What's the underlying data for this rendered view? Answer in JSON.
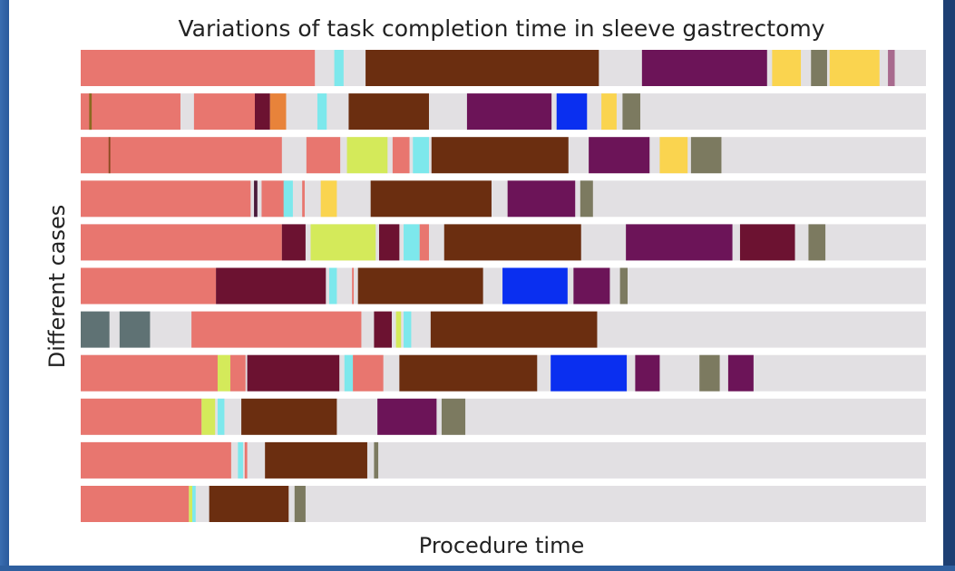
{
  "chart_data": {
    "type": "broken_bar",
    "title": "Variations of task completion time in sleeve gastrectomy",
    "xlabel": "Procedure time",
    "ylabel": "Different cases",
    "xlim": [
      0,
      100
    ],
    "background_color": "#e2e0e3",
    "rows": [
      {
        "segments": [
          {
            "start": 0,
            "duration": 27.7,
            "color": "#e8766f"
          },
          {
            "start": 30.0,
            "duration": 1.1,
            "color": "#7de8ec"
          },
          {
            "start": 33.7,
            "duration": 27.6,
            "color": "#6b2e10"
          },
          {
            "start": 66.4,
            "duration": 14.8,
            "color": "#6c1458"
          },
          {
            "start": 81.8,
            "duration": 3.4,
            "color": "#fad44f"
          },
          {
            "start": 86.4,
            "duration": 1.9,
            "color": "#7c7a60"
          },
          {
            "start": 88.6,
            "duration": 5.9,
            "color": "#fad44f"
          },
          {
            "start": 95.5,
            "duration": 0.8,
            "color": "#a86a8e"
          }
        ]
      },
      {
        "segments": [
          {
            "start": 0,
            "duration": 11.8,
            "color": "#e8766f"
          },
          {
            "start": 1.0,
            "duration": 0.3,
            "color": "#8a6a20"
          },
          {
            "start": 13.4,
            "duration": 7.2,
            "color": "#e8766f"
          },
          {
            "start": 20.6,
            "duration": 1.8,
            "color": "#6c1231"
          },
          {
            "start": 22.4,
            "duration": 1.9,
            "color": "#e8833a"
          },
          {
            "start": 28.0,
            "duration": 1.1,
            "color": "#7de8ec"
          },
          {
            "start": 31.7,
            "duration": 9.5,
            "color": "#6b2e10"
          },
          {
            "start": 45.7,
            "duration": 10.0,
            "color": "#6c1458"
          },
          {
            "start": 56.3,
            "duration": 3.6,
            "color": "#0a2ff0"
          },
          {
            "start": 61.6,
            "duration": 1.8,
            "color": "#fad44f"
          },
          {
            "start": 64.1,
            "duration": 2.1,
            "color": "#7c7a60"
          }
        ]
      },
      {
        "segments": [
          {
            "start": 0,
            "duration": 23.8,
            "color": "#e8766f"
          },
          {
            "start": 3.3,
            "duration": 0.2,
            "color": "#8a4a20"
          },
          {
            "start": 26.7,
            "duration": 4.0,
            "color": "#e8766f"
          },
          {
            "start": 31.5,
            "duration": 4.8,
            "color": "#d4ea5a"
          },
          {
            "start": 36.9,
            "duration": 2.0,
            "color": "#e8766f"
          },
          {
            "start": 39.3,
            "duration": 1.9,
            "color": "#7de8ec"
          },
          {
            "start": 41.5,
            "duration": 16.2,
            "color": "#6b2e10"
          },
          {
            "start": 60.1,
            "duration": 7.2,
            "color": "#6c1458"
          },
          {
            "start": 68.5,
            "duration": 3.3,
            "color": "#fad44f"
          },
          {
            "start": 72.2,
            "duration": 3.6,
            "color": "#7c7a60"
          }
        ]
      },
      {
        "segments": [
          {
            "start": 0,
            "duration": 20.1,
            "color": "#e8766f"
          },
          {
            "start": 20.5,
            "duration": 0.4,
            "color": "#4a1a3a"
          },
          {
            "start": 21.4,
            "duration": 2.7,
            "color": "#e8766f"
          },
          {
            "start": 24.0,
            "duration": 1.1,
            "color": "#7de8ec"
          },
          {
            "start": 26.2,
            "duration": 0.3,
            "color": "#e8766f"
          },
          {
            "start": 28.4,
            "duration": 1.9,
            "color": "#fad44f"
          },
          {
            "start": 34.3,
            "duration": 14.3,
            "color": "#6b2e10"
          },
          {
            "start": 50.5,
            "duration": 8.0,
            "color": "#6c1458"
          },
          {
            "start": 59.1,
            "duration": 1.5,
            "color": "#7c7a60"
          }
        ]
      },
      {
        "segments": [
          {
            "start": 0,
            "duration": 23.8,
            "color": "#e8766f"
          },
          {
            "start": 23.8,
            "duration": 2.8,
            "color": "#6c1231"
          },
          {
            "start": 27.2,
            "duration": 7.7,
            "color": "#d4ea5a"
          },
          {
            "start": 35.3,
            "duration": 2.4,
            "color": "#6c1231"
          },
          {
            "start": 38.2,
            "duration": 1.9,
            "color": "#7de8ec"
          },
          {
            "start": 40.1,
            "duration": 1.1,
            "color": "#e8766f"
          },
          {
            "start": 43.0,
            "duration": 16.2,
            "color": "#6b2e10"
          },
          {
            "start": 64.5,
            "duration": 12.6,
            "color": "#6c1458"
          },
          {
            "start": 78.0,
            "duration": 6.5,
            "color": "#6c1231"
          },
          {
            "start": 86.1,
            "duration": 2.0,
            "color": "#7c7a60"
          }
        ]
      },
      {
        "segments": [
          {
            "start": 0,
            "duration": 16.0,
            "color": "#e8766f"
          },
          {
            "start": 16.0,
            "duration": 13.0,
            "color": "#6c1231"
          },
          {
            "start": 29.4,
            "duration": 0.9,
            "color": "#7de8ec"
          },
          {
            "start": 32.1,
            "duration": 0.2,
            "color": "#e8766f"
          },
          {
            "start": 32.8,
            "duration": 14.8,
            "color": "#6b2e10"
          },
          {
            "start": 49.9,
            "duration": 7.7,
            "color": "#0a2ff0"
          },
          {
            "start": 58.3,
            "duration": 4.3,
            "color": "#6c1458"
          },
          {
            "start": 63.8,
            "duration": 0.9,
            "color": "#7c7a60"
          }
        ]
      },
      {
        "segments": [
          {
            "start": 0,
            "duration": 3.4,
            "color": "#5f7274"
          },
          {
            "start": 4.6,
            "duration": 3.6,
            "color": "#5f7274"
          },
          {
            "start": 13.1,
            "duration": 20.1,
            "color": "#e8766f"
          },
          {
            "start": 34.7,
            "duration": 2.1,
            "color": "#6c1231"
          },
          {
            "start": 37.3,
            "duration": 0.6,
            "color": "#d4ea5a"
          },
          {
            "start": 38.2,
            "duration": 0.9,
            "color": "#7de8ec"
          },
          {
            "start": 41.4,
            "duration": 19.7,
            "color": "#6b2e10"
          }
        ]
      },
      {
        "segments": [
          {
            "start": 0,
            "duration": 16.2,
            "color": "#e8766f"
          },
          {
            "start": 16.2,
            "duration": 1.5,
            "color": "#d4ea5a"
          },
          {
            "start": 17.7,
            "duration": 1.8,
            "color": "#e8766f"
          },
          {
            "start": 19.7,
            "duration": 10.9,
            "color": "#6c1231"
          },
          {
            "start": 31.2,
            "duration": 1.0,
            "color": "#7de8ec"
          },
          {
            "start": 32.2,
            "duration": 3.6,
            "color": "#e8766f"
          },
          {
            "start": 37.7,
            "duration": 16.3,
            "color": "#6b2e10"
          },
          {
            "start": 55.6,
            "duration": 9.0,
            "color": "#0a2ff0"
          },
          {
            "start": 65.6,
            "duration": 2.9,
            "color": "#6c1458"
          },
          {
            "start": 73.2,
            "duration": 2.4,
            "color": "#7c7a60"
          },
          {
            "start": 76.6,
            "duration": 3.0,
            "color": "#6c1458"
          }
        ]
      },
      {
        "segments": [
          {
            "start": 0,
            "duration": 14.3,
            "color": "#e8766f"
          },
          {
            "start": 14.3,
            "duration": 1.6,
            "color": "#d4ea5a"
          },
          {
            "start": 16.2,
            "duration": 0.8,
            "color": "#7de8ec"
          },
          {
            "start": 19.0,
            "duration": 11.3,
            "color": "#6b2e10"
          },
          {
            "start": 35.1,
            "duration": 7.0,
            "color": "#6c1458"
          },
          {
            "start": 42.7,
            "duration": 2.8,
            "color": "#7c7a60"
          }
        ]
      },
      {
        "segments": [
          {
            "start": 0,
            "duration": 17.8,
            "color": "#e8766f"
          },
          {
            "start": 18.6,
            "duration": 0.6,
            "color": "#7de8ec"
          },
          {
            "start": 19.4,
            "duration": 0.3,
            "color": "#e8766f"
          },
          {
            "start": 21.8,
            "duration": 12.1,
            "color": "#6b2e10"
          },
          {
            "start": 34.7,
            "duration": 0.5,
            "color": "#7c7a60"
          }
        ]
      },
      {
        "segments": [
          {
            "start": 0,
            "duration": 12.8,
            "color": "#e8766f"
          },
          {
            "start": 12.8,
            "duration": 0.4,
            "color": "#d4ea5a"
          },
          {
            "start": 13.2,
            "duration": 0.4,
            "color": "#7de8ec"
          },
          {
            "start": 15.2,
            "duration": 9.4,
            "color": "#6b2e10"
          },
          {
            "start": 25.3,
            "duration": 1.3,
            "color": "#7c7a60"
          }
        ]
      }
    ]
  }
}
